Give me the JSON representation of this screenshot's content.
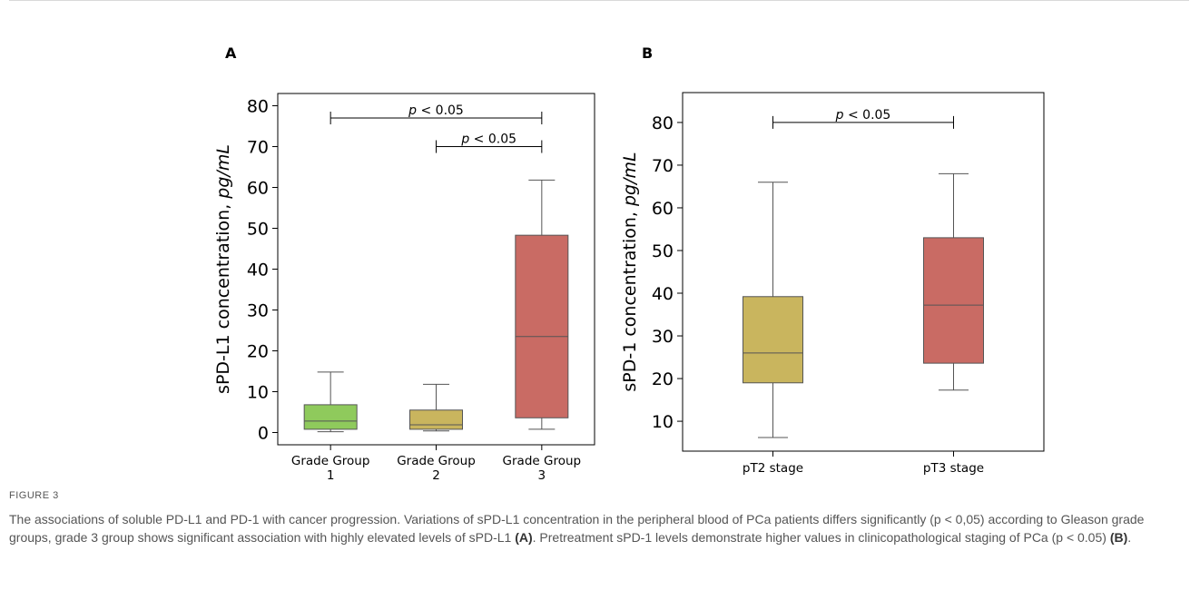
{
  "chart_data": [
    {
      "type": "box",
      "panel": "A",
      "categories": [
        "Grade Group\n1",
        "Grade Group\n2",
        "Grade Group\n3"
      ],
      "colors": [
        "#8fca5c",
        "#c9b55e",
        "#c96b64"
      ],
      "boxes": [
        {
          "whisker_low": 0.2,
          "q1": 0.8,
          "median": 2.8,
          "q3": 6.8,
          "whisker_high": 14.8
        },
        {
          "whisker_low": 0.4,
          "q1": 0.8,
          "median": 1.9,
          "q3": 5.5,
          "whisker_high": 11.8
        },
        {
          "whisker_low": 0.8,
          "q1": 3.6,
          "median": 23.5,
          "q3": 48.3,
          "whisker_high": 61.8
        }
      ],
      "ylabel": "sPD-L1 concentration, ",
      "ylabel_unit": "pg/mL",
      "ylim": [
        -3,
        83
      ],
      "yticks": [
        0,
        10,
        20,
        30,
        40,
        50,
        60,
        70,
        80
      ],
      "annotations": [
        {
          "from": 0,
          "to": 2,
          "y": 77,
          "text_p": "p",
          "text_rest": " < 0.05"
        },
        {
          "from": 1,
          "to": 2,
          "y": 70,
          "text_p": "p",
          "text_rest": " < 0.05"
        }
      ]
    },
    {
      "type": "box",
      "panel": "B",
      "categories": [
        "pT2 stage",
        "pT3 stage"
      ],
      "colors": [
        "#c9b55e",
        "#c96b64"
      ],
      "boxes": [
        {
          "whisker_low": 6.2,
          "q1": 19.0,
          "median": 26.0,
          "q3": 39.2,
          "whisker_high": 66.0
        },
        {
          "whisker_low": 17.3,
          "q1": 23.6,
          "median": 37.2,
          "q3": 53.0,
          "whisker_high": 68.0
        }
      ],
      "ylabel": "sPD-1 concentration, ",
      "ylabel_unit": "pg/mL",
      "ylim": [
        3,
        87
      ],
      "yticks": [
        10,
        20,
        30,
        40,
        50,
        60,
        70,
        80
      ],
      "annotations": [
        {
          "from": 0,
          "to": 1,
          "y": 80,
          "text_p": "p",
          "text_rest": " < 0.05"
        }
      ]
    }
  ],
  "caption": {
    "label": "FIGURE 3",
    "text_main": "The associations of soluble PD-L1 and PD-1 with cancer progression. Variations of sPD-L1 concentration in the peripheral blood of PCa patients differs significantly (p < 0,05) according to Gleason grade groups, grade 3 group shows significant association with highly elevated levels of sPD-L1 ",
    "ref_a": "(A)",
    "text_mid": ". Pretreatment sPD-1 levels demonstrate higher values in clinicopathological staging of PCa (p < 0.05) ",
    "ref_b": "(B)",
    "text_end": "."
  }
}
